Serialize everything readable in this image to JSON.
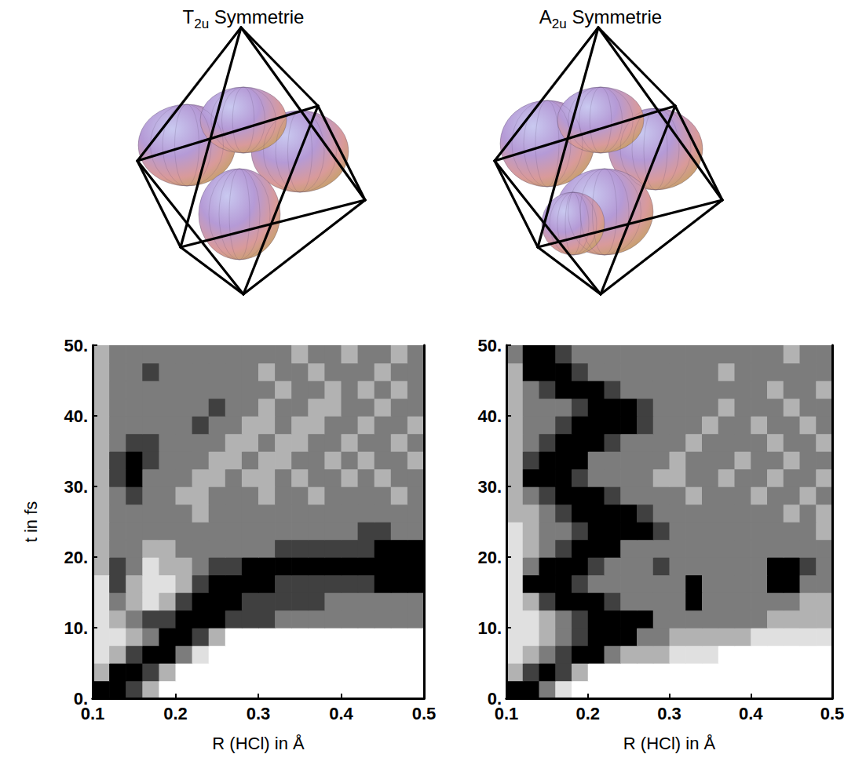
{
  "chart_data": [
    {
      "type": "heatmap",
      "title": "T2u Symmetrie",
      "title_subscript": "2u",
      "xlabel": "R (HCl) in Å",
      "ylabel": "t in fs",
      "xlim": [
        0.1,
        0.5
      ],
      "ylim": [
        0,
        50
      ],
      "xticks": [
        0.1,
        0.2,
        0.3,
        0.4,
        0.5
      ],
      "yticks": [
        {
          "value": 0,
          "label": "0."
        },
        {
          "value": 10,
          "label": "10."
        },
        {
          "value": 20,
          "label": "20."
        },
        {
          "value": 30,
          "label": "30."
        },
        {
          "value": 40,
          "label": "40."
        },
        {
          "value": 50,
          "label": "50."
        }
      ],
      "x": [
        0.11,
        0.13,
        0.15,
        0.17,
        0.19,
        0.21,
        0.23,
        0.25,
        0.27,
        0.29,
        0.31,
        0.33,
        0.35,
        0.37,
        0.39,
        0.41,
        0.43,
        0.45,
        0.47,
        0.49
      ],
      "y": [
        1.25,
        3.75,
        6.25,
        8.75,
        11.25,
        13.75,
        16.25,
        18.75,
        21.25,
        23.75,
        26.25,
        28.75,
        31.25,
        33.75,
        36.25,
        38.75,
        41.25,
        43.75,
        46.25,
        48.75
      ],
      "zlim": [
        0,
        5
      ],
      "z": [
        [
          5,
          5,
          4,
          2,
          0,
          0,
          0,
          0,
          0,
          0,
          0,
          0,
          0,
          0,
          0,
          0,
          0,
          0,
          0,
          0
        ],
        [
          2,
          5,
          5,
          4,
          2,
          0,
          0,
          0,
          0,
          0,
          0,
          0,
          0,
          0,
          0,
          0,
          0,
          0,
          0,
          0
        ],
        [
          1,
          2,
          4,
          5,
          5,
          3,
          1,
          0,
          0,
          0,
          0,
          0,
          0,
          0,
          0,
          0,
          0,
          0,
          0,
          0
        ],
        [
          1,
          1,
          2,
          3,
          5,
          5,
          4,
          2,
          0,
          0,
          0,
          0,
          0,
          0,
          0,
          0,
          0,
          0,
          0,
          0
        ],
        [
          1,
          2,
          3,
          4,
          4,
          5,
          5,
          5,
          4,
          4,
          4,
          3,
          3,
          3,
          3,
          3,
          3,
          3,
          3,
          3
        ],
        [
          1,
          3,
          2,
          1,
          2,
          4,
          5,
          5,
          5,
          4,
          4,
          4,
          4,
          4,
          3,
          3,
          3,
          3,
          3,
          3
        ],
        [
          1,
          4,
          2,
          1,
          1,
          2,
          4,
          5,
          5,
          5,
          5,
          4,
          4,
          4,
          4,
          4,
          4,
          5,
          5,
          5
        ],
        [
          2,
          4,
          3,
          1,
          2,
          2,
          3,
          4,
          4,
          5,
          5,
          5,
          5,
          5,
          5,
          5,
          5,
          5,
          5,
          5
        ],
        [
          2,
          3,
          3,
          2,
          2,
          3,
          3,
          3,
          3,
          3,
          3,
          4,
          4,
          4,
          4,
          4,
          4,
          5,
          5,
          5
        ],
        [
          2,
          3,
          3,
          3,
          3,
          3,
          3,
          3,
          3,
          3,
          3,
          3,
          3,
          3,
          3,
          3,
          4,
          4,
          3,
          3
        ],
        [
          2,
          3,
          3,
          3,
          3,
          3,
          2,
          3,
          3,
          3,
          3,
          3,
          3,
          3,
          3,
          3,
          3,
          3,
          3,
          3
        ],
        [
          2,
          3,
          4,
          3,
          3,
          2,
          2,
          3,
          3,
          3,
          2,
          3,
          3,
          2,
          3,
          3,
          3,
          3,
          2,
          3
        ],
        [
          2,
          4,
          5,
          3,
          3,
          3,
          2,
          2,
          3,
          2,
          2,
          3,
          2,
          3,
          3,
          2,
          3,
          2,
          3,
          3
        ],
        [
          2,
          4,
          5,
          4,
          3,
          3,
          3,
          2,
          2,
          3,
          2,
          2,
          3,
          3,
          2,
          3,
          2,
          3,
          3,
          2
        ],
        [
          2,
          3,
          4,
          4,
          3,
          3,
          3,
          3,
          2,
          2,
          3,
          2,
          2,
          3,
          3,
          2,
          3,
          3,
          2,
          3
        ],
        [
          2,
          3,
          3,
          3,
          3,
          3,
          4,
          3,
          3,
          2,
          2,
          3,
          2,
          2,
          3,
          3,
          2,
          3,
          3,
          2
        ],
        [
          2,
          3,
          3,
          3,
          3,
          3,
          3,
          4,
          3,
          3,
          2,
          3,
          3,
          2,
          2,
          3,
          3,
          2,
          3,
          3
        ],
        [
          2,
          3,
          3,
          3,
          3,
          3,
          3,
          3,
          3,
          3,
          3,
          2,
          3,
          3,
          2,
          3,
          2,
          3,
          2,
          3
        ],
        [
          2,
          3,
          3,
          4,
          3,
          3,
          3,
          3,
          3,
          3,
          2,
          3,
          3,
          2,
          3,
          3,
          3,
          2,
          3,
          3
        ],
        [
          2,
          3,
          3,
          3,
          3,
          3,
          3,
          3,
          3,
          3,
          3,
          3,
          2,
          3,
          3,
          2,
          3,
          3,
          2,
          3
        ]
      ]
    },
    {
      "type": "heatmap",
      "title": "A2u Symmetrie",
      "title_subscript": "2u",
      "xlabel": "R (HCl) in Å",
      "xlim": [
        0.1,
        0.5
      ],
      "ylim": [
        0,
        50
      ],
      "xticks": [
        0.1,
        0.2,
        0.3,
        0.4,
        0.5
      ],
      "yticks": [
        {
          "value": 0,
          "label": "0."
        },
        {
          "value": 10,
          "label": "10."
        },
        {
          "value": 20,
          "label": "20."
        },
        {
          "value": 30,
          "label": "30."
        },
        {
          "value": 40,
          "label": "40."
        },
        {
          "value": 50,
          "label": "50."
        }
      ],
      "x": [
        0.11,
        0.13,
        0.15,
        0.17,
        0.19,
        0.21,
        0.23,
        0.25,
        0.27,
        0.29,
        0.31,
        0.33,
        0.35,
        0.37,
        0.39,
        0.41,
        0.43,
        0.45,
        0.47,
        0.49
      ],
      "y": [
        1.25,
        3.75,
        6.25,
        8.75,
        11.25,
        13.75,
        16.25,
        18.75,
        21.25,
        23.75,
        26.25,
        28.75,
        31.25,
        33.75,
        36.25,
        38.75,
        41.25,
        43.75,
        46.25,
        48.75
      ],
      "zlim": [
        0,
        5
      ],
      "z": [
        [
          5,
          5,
          3,
          1,
          0,
          0,
          0,
          0,
          0,
          0,
          0,
          0,
          0,
          0,
          0,
          0,
          0,
          0,
          0,
          0
        ],
        [
          2,
          4,
          5,
          4,
          2,
          0,
          0,
          0,
          0,
          0,
          0,
          0,
          0,
          0,
          0,
          0,
          0,
          0,
          0,
          0
        ],
        [
          1,
          2,
          3,
          4,
          5,
          5,
          3,
          2,
          2,
          2,
          1,
          1,
          1,
          0,
          0,
          0,
          0,
          0,
          0,
          0
        ],
        [
          1,
          1,
          2,
          3,
          4,
          5,
          5,
          5,
          3,
          3,
          2,
          2,
          2,
          2,
          2,
          1,
          1,
          1,
          1,
          1
        ],
        [
          1,
          1,
          2,
          3,
          4,
          5,
          5,
          5,
          5,
          3,
          3,
          3,
          3,
          3,
          3,
          3,
          2,
          2,
          2,
          2
        ],
        [
          1,
          2,
          4,
          5,
          5,
          5,
          4,
          3,
          3,
          3,
          3,
          5,
          3,
          3,
          3,
          3,
          3,
          3,
          2,
          2
        ],
        [
          1,
          5,
          5,
          5,
          4,
          3,
          3,
          3,
          3,
          3,
          3,
          5,
          3,
          3,
          3,
          3,
          5,
          5,
          3,
          3
        ],
        [
          1,
          3,
          5,
          5,
          5,
          4,
          3,
          3,
          3,
          4,
          3,
          3,
          3,
          3,
          3,
          3,
          5,
          5,
          4,
          3
        ],
        [
          1,
          2,
          3,
          4,
          5,
          5,
          5,
          3,
          3,
          3,
          3,
          3,
          3,
          3,
          3,
          3,
          3,
          3,
          3,
          3
        ],
        [
          1,
          2,
          3,
          3,
          4,
          5,
          5,
          5,
          5,
          4,
          3,
          3,
          3,
          3,
          3,
          3,
          3,
          3,
          3,
          2
        ],
        [
          2,
          2,
          3,
          4,
          5,
          5,
          5,
          5,
          4,
          3,
          3,
          3,
          3,
          3,
          3,
          3,
          3,
          2,
          3,
          2
        ],
        [
          2,
          3,
          4,
          5,
          5,
          5,
          4,
          3,
          3,
          3,
          3,
          2,
          3,
          3,
          3,
          2,
          3,
          3,
          2,
          3
        ],
        [
          2,
          5,
          5,
          5,
          4,
          3,
          3,
          3,
          3,
          2,
          2,
          3,
          3,
          2,
          3,
          3,
          2,
          3,
          3,
          2
        ],
        [
          2,
          4,
          5,
          5,
          5,
          3,
          3,
          3,
          3,
          3,
          2,
          3,
          3,
          3,
          2,
          3,
          3,
          2,
          3,
          3
        ],
        [
          2,
          3,
          4,
          5,
          5,
          5,
          4,
          3,
          3,
          3,
          3,
          2,
          3,
          3,
          3,
          3,
          2,
          3,
          3,
          2
        ],
        [
          2,
          3,
          3,
          4,
          5,
          5,
          5,
          5,
          4,
          3,
          3,
          3,
          2,
          3,
          3,
          2,
          3,
          3,
          2,
          3
        ],
        [
          2,
          3,
          3,
          3,
          4,
          5,
          5,
          5,
          4,
          3,
          3,
          3,
          3,
          2,
          3,
          3,
          3,
          2,
          3,
          3
        ],
        [
          2,
          3,
          4,
          5,
          5,
          5,
          4,
          3,
          3,
          3,
          3,
          3,
          3,
          3,
          3,
          3,
          2,
          3,
          3,
          2
        ],
        [
          2,
          5,
          5,
          5,
          4,
          3,
          3,
          3,
          3,
          3,
          3,
          3,
          3,
          2,
          3,
          3,
          3,
          3,
          3,
          3
        ],
        [
          3,
          5,
          5,
          4,
          3,
          3,
          3,
          3,
          3,
          3,
          3,
          3,
          3,
          3,
          3,
          3,
          3,
          2,
          3,
          3
        ]
      ]
    }
  ]
}
